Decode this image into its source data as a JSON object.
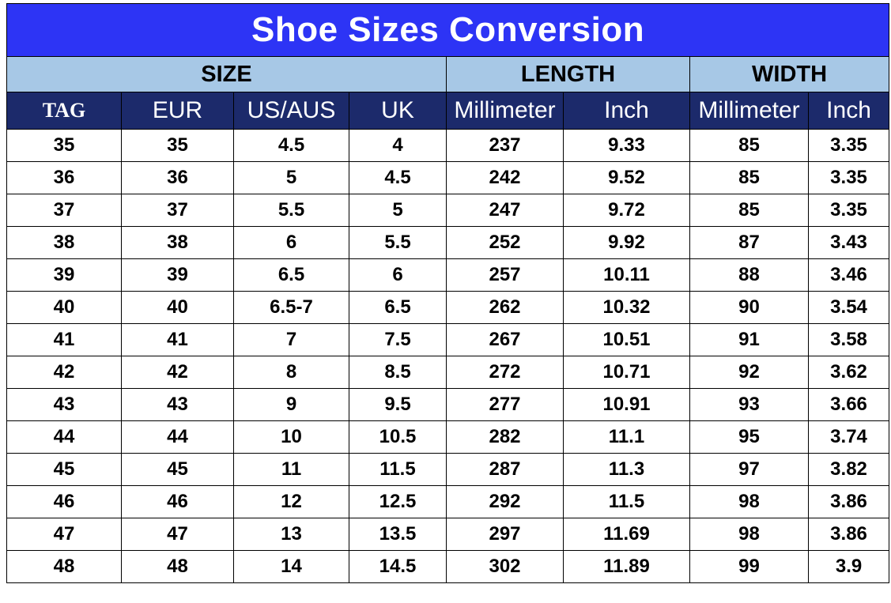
{
  "title": "Shoe Sizes Conversion",
  "groups": {
    "size": "SIZE",
    "length": "LENGTH",
    "width": "WIDTH"
  },
  "columns": [
    "TAG",
    "EUR",
    "US/AUS",
    "UK",
    "Millimeter",
    "Inch",
    "Millimeter",
    "Inch"
  ],
  "rows": [
    [
      "35",
      "35",
      "4.5",
      "4",
      "237",
      "9.33",
      "85",
      "3.35"
    ],
    [
      "36",
      "36",
      "5",
      "4.5",
      "242",
      "9.52",
      "85",
      "3.35"
    ],
    [
      "37",
      "37",
      "5.5",
      "5",
      "247",
      "9.72",
      "85",
      "3.35"
    ],
    [
      "38",
      "38",
      "6",
      "5.5",
      "252",
      "9.92",
      "87",
      "3.43"
    ],
    [
      "39",
      "39",
      "6.5",
      "6",
      "257",
      "10.11",
      "88",
      "3.46"
    ],
    [
      "40",
      "40",
      "6.5-7",
      "6.5",
      "262",
      "10.32",
      "90",
      "3.54"
    ],
    [
      "41",
      "41",
      "7",
      "7.5",
      "267",
      "10.51",
      "91",
      "3.58"
    ],
    [
      "42",
      "42",
      "8",
      "8.5",
      "272",
      "10.71",
      "92",
      "3.62"
    ],
    [
      "43",
      "43",
      "9",
      "9.5",
      "277",
      "10.91",
      "93",
      "3.66"
    ],
    [
      "44",
      "44",
      "10",
      "10.5",
      "282",
      "11.1",
      "95",
      "3.74"
    ],
    [
      "45",
      "45",
      "11",
      "11.5",
      "287",
      "11.3",
      "97",
      "3.82"
    ],
    [
      "46",
      "46",
      "12",
      "12.5",
      "292",
      "11.5",
      "98",
      "3.86"
    ],
    [
      "47",
      "47",
      "13",
      "13.5",
      "297",
      "11.69",
      "98",
      "3.86"
    ],
    [
      "48",
      "48",
      "14",
      "14.5",
      "302",
      "11.89",
      "99",
      "3.9"
    ]
  ],
  "colors": {
    "title_bg": "#2d34f5",
    "group_bg": "#a7c8e6",
    "column_header_bg": "#1c2a6b"
  }
}
